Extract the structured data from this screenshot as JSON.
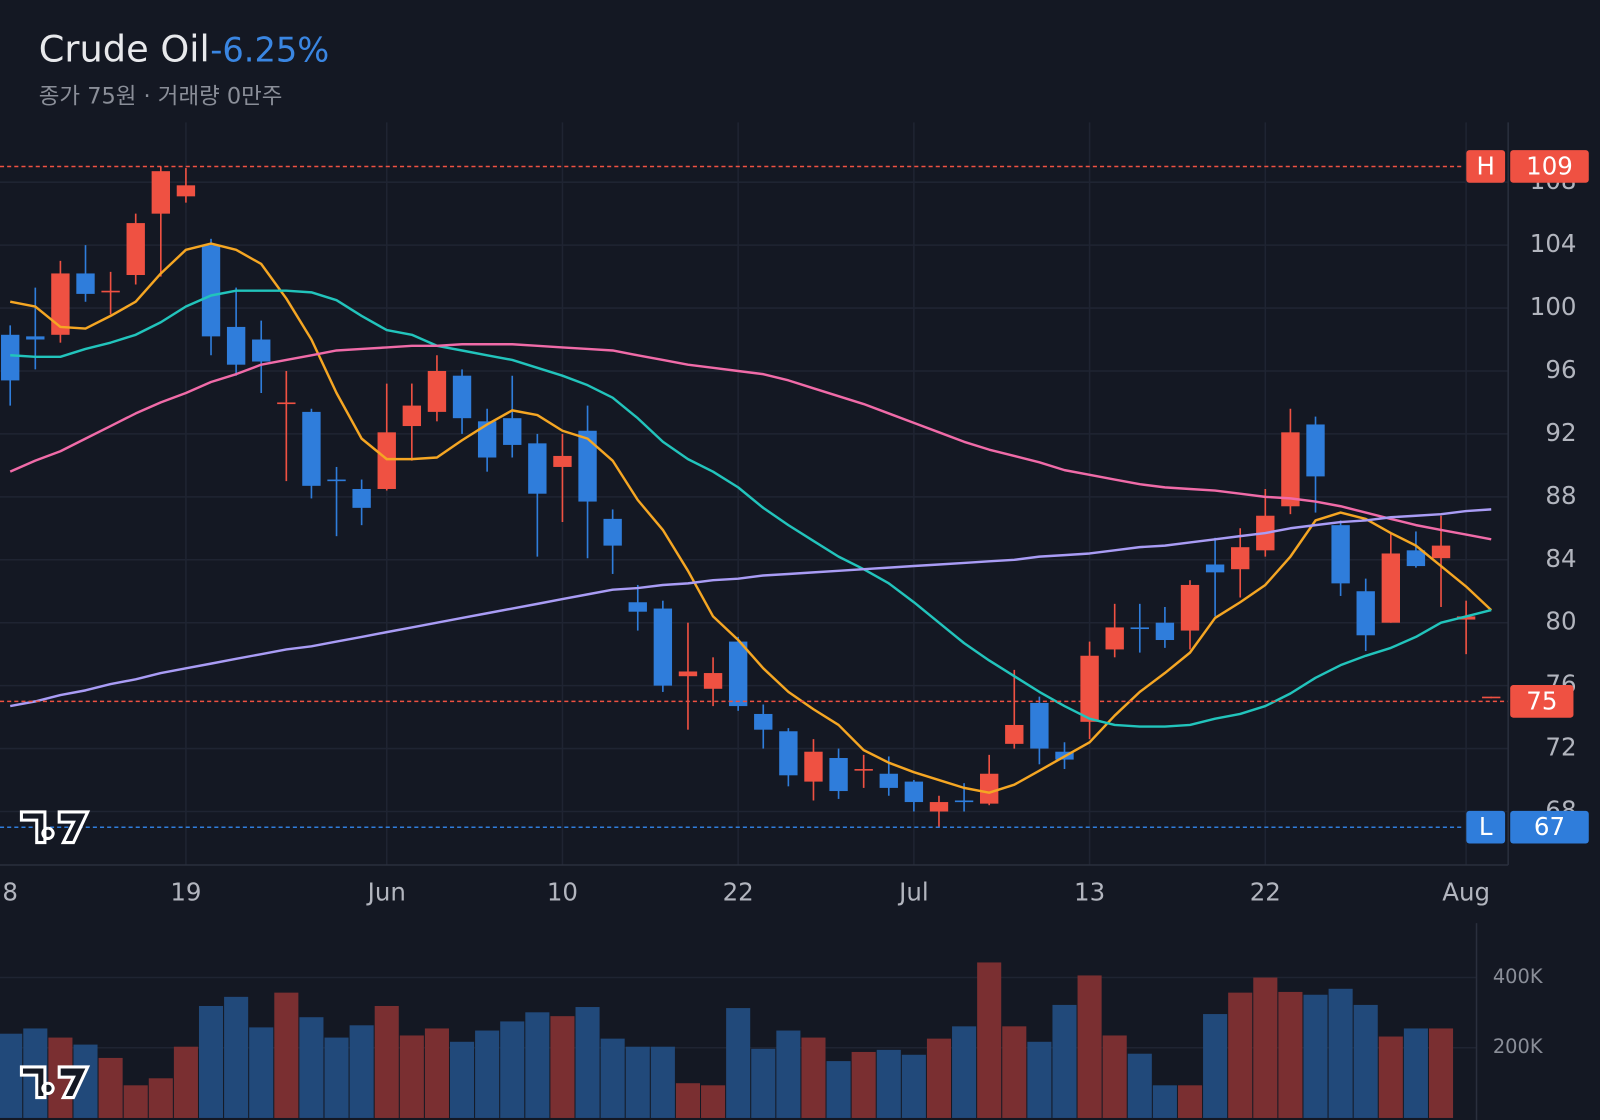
{
  "chart_data": {
    "type": "candlestick",
    "title": "Crude Oil",
    "change": "-6.25%",
    "subtitle": "종가 75원 · 거래량 0만주",
    "categories": [
      "8",
      null,
      null,
      null,
      null,
      null,
      null,
      "19",
      null,
      null,
      null,
      null,
      null,
      null,
      null,
      "Jun",
      null,
      null,
      null,
      null,
      null,
      null,
      "10",
      null,
      null,
      null,
      null,
      null,
      null,
      "22",
      null,
      null,
      null,
      null,
      null,
      null,
      "Jul",
      null,
      null,
      null,
      null,
      null,
      null,
      "13",
      null,
      null,
      null,
      null,
      null,
      null,
      "22",
      null,
      null,
      null,
      null,
      null,
      null,
      null,
      "Aug",
      null
    ],
    "open": [
      98.3,
      98.2,
      98.3,
      102.2,
      101.0,
      102.1,
      106.0,
      107.1,
      104.0,
      98.8,
      98.0,
      93.9,
      93.4,
      89.1,
      88.5,
      88.5,
      92.5,
      93.4,
      95.7,
      92.8,
      93.0,
      91.4,
      89.9,
      92.2,
      86.6,
      81.3,
      80.9,
      76.6,
      75.8,
      78.8,
      74.2,
      73.1,
      69.9,
      71.4,
      70.6,
      70.4,
      69.9,
      68.0,
      68.7,
      68.5,
      72.3,
      74.9,
      71.8,
      73.7,
      78.3,
      79.7,
      80.0,
      79.5,
      83.7,
      83.4,
      84.6,
      87.4,
      92.6,
      86.2,
      82.0,
      80.0,
      84.6,
      84.1,
      80.2,
      75.2
    ],
    "high": [
      98.9,
      101.3,
      103.0,
      104.0,
      102.3,
      106.0,
      109.0,
      108.9,
      104.4,
      101.3,
      99.2,
      96.0,
      93.6,
      89.9,
      89.1,
      95.2,
      95.2,
      97.0,
      96.1,
      93.6,
      95.7,
      92.0,
      92.0,
      93.8,
      87.2,
      82.4,
      81.4,
      80.0,
      77.8,
      79.1,
      74.8,
      73.3,
      72.6,
      72.0,
      71.6,
      71.5,
      70.0,
      69.0,
      69.8,
      71.6,
      77.0,
      75.3,
      72.4,
      78.8,
      81.2,
      81.2,
      81.0,
      82.7,
      85.4,
      86.0,
      88.5,
      93.6,
      93.1,
      86.5,
      82.8,
      85.7,
      85.8,
      86.8,
      81.4,
      75.3
    ],
    "low": [
      93.8,
      96.1,
      97.8,
      100.4,
      99.6,
      101.5,
      102.0,
      106.7,
      97.0,
      95.7,
      94.6,
      89.0,
      87.9,
      85.5,
      86.2,
      88.4,
      90.3,
      92.8,
      92.0,
      89.6,
      90.5,
      84.2,
      86.4,
      84.1,
      83.1,
      79.5,
      75.6,
      73.2,
      74.7,
      74.4,
      72.0,
      69.6,
      68.7,
      68.8,
      69.5,
      69.0,
      68.0,
      67.0,
      68.0,
      68.4,
      72.0,
      71.0,
      70.7,
      72.6,
      77.8,
      78.1,
      78.4,
      78.3,
      80.4,
      81.6,
      84.2,
      86.9,
      87.0,
      81.7,
      78.2,
      80.0,
      83.5,
      81.0,
      78.0,
      75.2
    ],
    "close": [
      95.4,
      98.0,
      102.2,
      100.9,
      101.1,
      105.4,
      108.7,
      107.8,
      98.2,
      96.4,
      96.6,
      94.0,
      88.7,
      89.0,
      87.3,
      92.1,
      93.8,
      96.0,
      93.0,
      90.5,
      91.3,
      88.2,
      90.6,
      87.7,
      84.9,
      80.7,
      76.0,
      76.9,
      76.8,
      74.7,
      73.2,
      70.3,
      71.8,
      69.3,
      70.7,
      69.5,
      68.6,
      68.6,
      68.6,
      70.4,
      73.5,
      72.0,
      71.3,
      77.9,
      79.7,
      79.6,
      78.9,
      82.4,
      83.2,
      84.8,
      86.8,
      92.1,
      89.3,
      82.5,
      79.2,
      84.4,
      83.6,
      84.9,
      80.4,
      75.3
    ],
    "up_color": "#ef5142",
    "down_color": "#2f7ddb",
    "series": [
      {
        "color": "#f5a623",
        "values": [
          100.4,
          100.1,
          98.8,
          98.7,
          99.5,
          100.4,
          102.2,
          103.7,
          104.1,
          103.7,
          102.8,
          100.6,
          98.0,
          94.6,
          91.7,
          90.4,
          90.4,
          90.5,
          91.6,
          92.6,
          93.5,
          93.2,
          92.2,
          91.7,
          90.3,
          87.8,
          85.9,
          83.3,
          80.4,
          78.9,
          77.1,
          75.6,
          74.5,
          73.5,
          71.9,
          71.1,
          70.5,
          70.0,
          69.5,
          69.2,
          69.7,
          70.6,
          71.5,
          72.4,
          74.1,
          75.6,
          76.8,
          78.1,
          80.3,
          81.3,
          82.4,
          84.2,
          86.5,
          87.0,
          86.6,
          85.7,
          84.9,
          83.6,
          82.3,
          80.8
        ]
      },
      {
        "color": "#22c4bc",
        "values": [
          97.0,
          96.9,
          96.9,
          97.4,
          97.8,
          98.3,
          99.1,
          100.1,
          100.8,
          101.1,
          101.1,
          101.1,
          101.0,
          100.5,
          99.5,
          98.6,
          98.3,
          97.6,
          97.3,
          97.0,
          96.7,
          96.2,
          95.7,
          95.1,
          94.3,
          93.0,
          91.5,
          90.4,
          89.6,
          88.6,
          87.3,
          86.2,
          85.2,
          84.2,
          83.4,
          82.5,
          81.3,
          80.0,
          78.7,
          77.6,
          76.6,
          75.6,
          74.7,
          73.9,
          73.5,
          73.4,
          73.4,
          73.5,
          73.9,
          74.2,
          74.7,
          75.5,
          76.5,
          77.3,
          77.9,
          78.4,
          79.1,
          80.0,
          80.4,
          80.8
        ]
      },
      {
        "color": "#f06ba8",
        "values": [
          89.6,
          90.3,
          90.9,
          91.7,
          92.5,
          93.3,
          94.0,
          94.6,
          95.3,
          95.8,
          96.4,
          96.7,
          97.0,
          97.3,
          97.4,
          97.5,
          97.6,
          97.6,
          97.7,
          97.7,
          97.7,
          97.6,
          97.5,
          97.4,
          97.3,
          97.0,
          96.7,
          96.4,
          96.2,
          96.0,
          95.8,
          95.4,
          94.9,
          94.4,
          93.9,
          93.3,
          92.7,
          92.1,
          91.5,
          91.0,
          90.6,
          90.2,
          89.7,
          89.4,
          89.1,
          88.8,
          88.6,
          88.5,
          88.4,
          88.2,
          88.0,
          87.9,
          87.7,
          87.4,
          87.0,
          86.6,
          86.2,
          85.9,
          85.6,
          85.3
        ]
      },
      {
        "color": "#a99cf5",
        "values": [
          74.7,
          75.0,
          75.4,
          75.7,
          76.1,
          76.4,
          76.8,
          77.1,
          77.4,
          77.7,
          78.0,
          78.3,
          78.5,
          78.8,
          79.1,
          79.4,
          79.7,
          80.0,
          80.3,
          80.6,
          80.9,
          81.2,
          81.5,
          81.8,
          82.1,
          82.2,
          82.4,
          82.5,
          82.7,
          82.8,
          83.0,
          83.1,
          83.2,
          83.3,
          83.4,
          83.5,
          83.6,
          83.7,
          83.8,
          83.9,
          84.0,
          84.2,
          84.3,
          84.4,
          84.6,
          84.8,
          84.9,
          85.1,
          85.3,
          85.5,
          85.7,
          86.0,
          86.2,
          86.4,
          86.5,
          86.7,
          86.8,
          86.9,
          87.1,
          87.2
        ]
      }
    ],
    "ylim": [
      64.6,
      111.8
    ],
    "yticks": [
      68,
      72,
      76,
      80,
      84,
      88,
      92,
      96,
      100,
      104,
      108
    ],
    "grid": true,
    "high_marker": {
      "label": "H",
      "value": 109
    },
    "low_marker": {
      "label": "L",
      "value": 67
    },
    "last_marker": {
      "value": 75
    },
    "volume": {
      "values": [
        240000,
        255000,
        229000,
        209000,
        171000,
        93000,
        113000,
        203000,
        319000,
        345000,
        258000,
        357000,
        287000,
        229000,
        264000,
        319000,
        235000,
        255000,
        217000,
        249000,
        275000,
        301000,
        290000,
        316000,
        226000,
        203000,
        203000,
        99000,
        93000,
        313000,
        197000,
        249000,
        229000,
        162000,
        188000,
        194000,
        180000,
        226000,
        261000,
        443000,
        261000,
        217000,
        322000,
        406000,
        235000,
        183000,
        93000,
        93000,
        296000,
        357000,
        400000,
        359000,
        351000,
        368000,
        322000,
        232000,
        255000,
        255000,
        null,
        null
      ],
      "up_color": "#7a2f31",
      "down_color": "#21497a",
      "ylim": [
        0,
        555000
      ],
      "yticks": [
        {
          "value": 200000,
          "label": "200K"
        },
        {
          "value": 400000,
          "label": "400K"
        }
      ]
    }
  }
}
